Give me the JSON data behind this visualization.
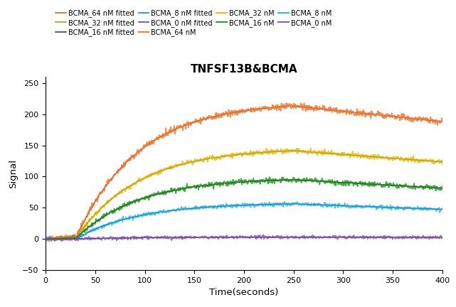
{
  "title": "TNFSF13B&BCMA",
  "xlabel": "Time(seconds)",
  "ylabel": "Signal",
  "xlim": [
    0,
    400
  ],
  "ylim": [
    -50,
    260
  ],
  "yticks": [
    -50,
    0,
    50,
    100,
    150,
    200,
    250
  ],
  "xticks": [
    0,
    50,
    100,
    150,
    200,
    250,
    300,
    350,
    400
  ],
  "raw_colors": {
    "BCMA_64": "#F08040",
    "BCMA_32": "#E8C020",
    "BCMA_16": "#30A030",
    "BCMA_8": "#30C0E0",
    "BCMA_0": "#9060C0"
  },
  "fit_colors": {
    "BCMA_64": "#D06828",
    "BCMA_32": "#B89800",
    "BCMA_16": "#206020",
    "BCMA_8": "#2080D0",
    "BCMA_0": "#704080"
  },
  "legend_labels_fit": [
    "BCMA_64 nM fitted",
    "BCMA_32 nM fitted",
    "BCMA_16 nM fitted",
    "BCMA_8 nM fitted",
    "BCMA_0 nM fitted"
  ],
  "legend_labels_raw": [
    "BCMA_64 nM",
    "BCMA_32 nM",
    "BCMA_16 nM",
    "BCMA_8 nM",
    "BCMA_0 nM"
  ]
}
